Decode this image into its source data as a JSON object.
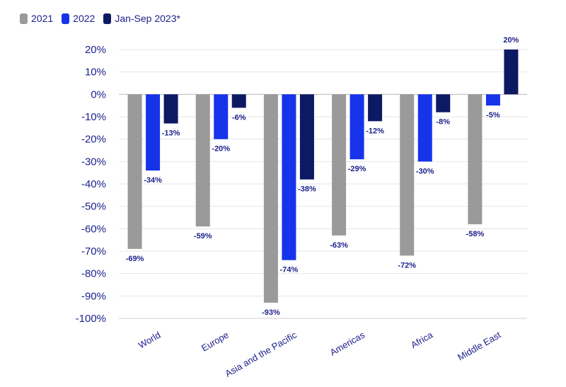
{
  "chart_data": {
    "type": "bar",
    "categories": [
      "World",
      "Europe",
      "Asia and the Pacific",
      "Americas",
      "Africa",
      "Middle East"
    ],
    "series": [
      {
        "name": "2021",
        "color": "#9a9a9a",
        "values": [
          -69,
          -59,
          -93,
          -63,
          -72,
          -58
        ]
      },
      {
        "name": "2022",
        "color": "#1733ea",
        "values": [
          -34,
          -20,
          -74,
          -29,
          -30,
          -5
        ]
      },
      {
        "name": "Jan-Sep 2023*",
        "color": "#0d1a63",
        "values": [
          -13,
          -6,
          -38,
          -12,
          -8,
          20
        ]
      }
    ],
    "y_ticks": [
      "20%",
      "10%",
      "0%",
      "-10%",
      "-20%",
      "-30%",
      "-40%",
      "-50%",
      "-60%",
      "-70%",
      "-80%",
      "-90%",
      "-100%"
    ],
    "ylim": [
      -100,
      20
    ],
    "data_labels": [
      [
        "-69%",
        "-59%",
        "-93%",
        "-63%",
        "-72%",
        "-58%"
      ],
      [
        "-34%",
        "-20%",
        "-74%",
        "-29%",
        "-30%",
        "-5%"
      ],
      [
        "-13%",
        "-6%",
        "-38%",
        "-12%",
        "-8%",
        "20%"
      ]
    ],
    "grid": true,
    "legend_position": "top-left"
  }
}
